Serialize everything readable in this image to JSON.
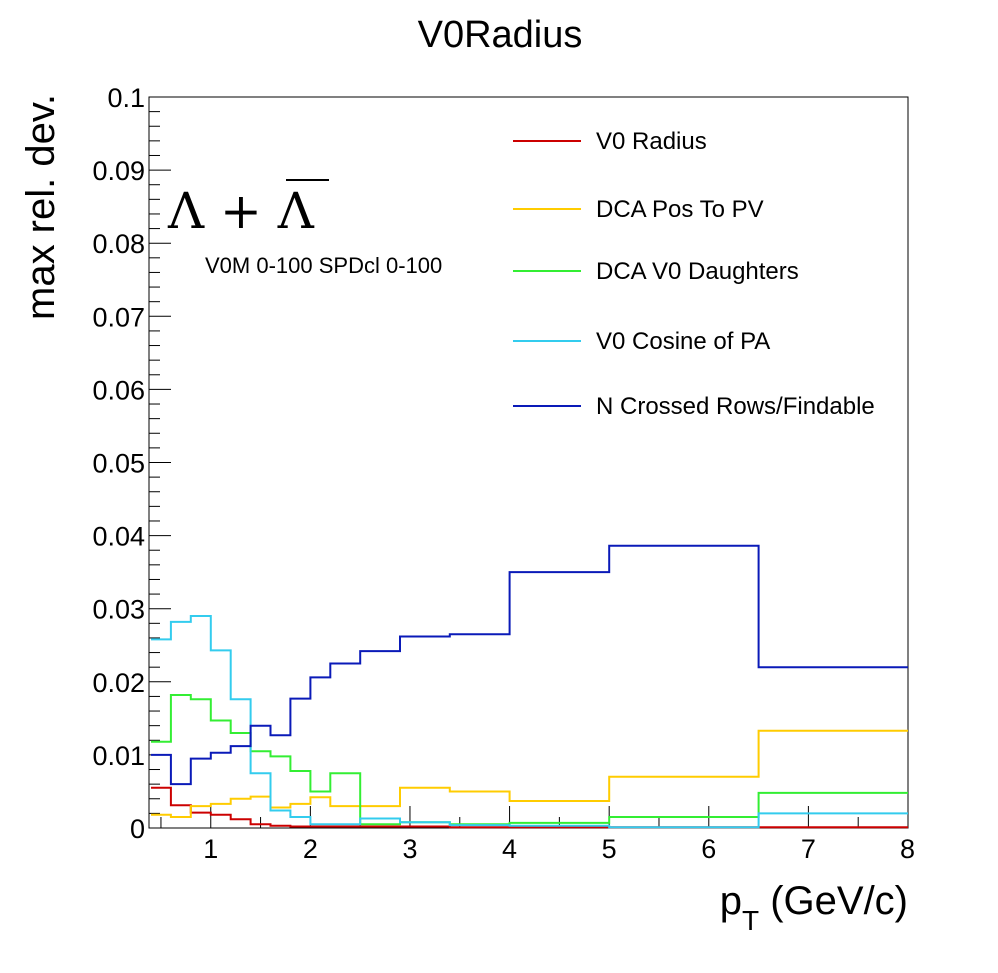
{
  "chart_data": {
    "type": "line",
    "step": true,
    "title": "V0Radius",
    "xlabel_main": "p",
    "xlabel_sub": "T",
    "xlabel_rest": " (GeV/c)",
    "ylabel": "max rel. dev.",
    "xlim": [
      0.38,
      8
    ],
    "ylim": [
      0,
      0.1
    ],
    "xticks": [
      1,
      2,
      3,
      4,
      5,
      6,
      7,
      8
    ],
    "xtick_labels": [
      "1",
      "2",
      "3",
      "4",
      "5",
      "6",
      "7",
      "8"
    ],
    "yticks": [
      0,
      0.01,
      0.02,
      0.03,
      0.04,
      0.05,
      0.06,
      0.07,
      0.08,
      0.09,
      0.1
    ],
    "ytick_labels": [
      "0",
      "0.01",
      "0.02",
      "0.03",
      "0.04",
      "0.05",
      "0.06",
      "0.07",
      "0.08",
      "0.09",
      "0.1"
    ],
    "grid": false,
    "legend_position": "top-right",
    "annotations": {
      "lambda": "Λ + Λ",
      "selection": "V0M 0-100 SPDcl 0-100"
    },
    "bin_edges": [
      0.4,
      0.6,
      0.8,
      1.0,
      1.2,
      1.4,
      1.6,
      1.8,
      2.0,
      2.2,
      2.5,
      2.9,
      3.4,
      4.0,
      5.0,
      6.5,
      8.0
    ],
    "series": [
      {
        "name": "V0 Radius",
        "color": "#cc0000",
        "values": [
          0.0055,
          0.0031,
          0.0021,
          0.0018,
          0.0012,
          0.0005,
          0.0003,
          0.0002,
          0.0002,
          0.0002,
          0.0002,
          0.0002,
          0.0001,
          0.0001,
          0.0001,
          0.0001
        ]
      },
      {
        "name": "DCA Pos To PV",
        "color": "#ffcc00",
        "values": [
          0.0018,
          0.0015,
          0.003,
          0.0033,
          0.004,
          0.0043,
          0.0028,
          0.0033,
          0.0042,
          0.003,
          0.003,
          0.0055,
          0.005,
          0.0037,
          0.007,
          0.0133
        ]
      },
      {
        "name": "DCA V0 Daughters",
        "color": "#33ee33",
        "values": [
          0.0118,
          0.0182,
          0.0176,
          0.0147,
          0.013,
          0.0105,
          0.0098,
          0.0078,
          0.005,
          0.0075,
          0.0005,
          0.0008,
          0.0005,
          0.0007,
          0.0015,
          0.0048
        ]
      },
      {
        "name": "V0 Cosine of PA",
        "color": "#33ccee",
        "values": [
          0.0258,
          0.0282,
          0.029,
          0.0243,
          0.0176,
          0.0075,
          0.0024,
          0.0015,
          0.0005,
          0.0005,
          0.0013,
          0.0008,
          0.0004,
          0.0003,
          0.0001,
          0.002
        ]
      },
      {
        "name": "N Crossed Rows/Findable",
        "color": "#0a1ab8",
        "values": [
          0.01,
          0.006,
          0.0095,
          0.0103,
          0.0112,
          0.014,
          0.0127,
          0.0177,
          0.0206,
          0.0225,
          0.0242,
          0.0262,
          0.0265,
          0.035,
          0.0386,
          0.022
        ]
      }
    ]
  }
}
